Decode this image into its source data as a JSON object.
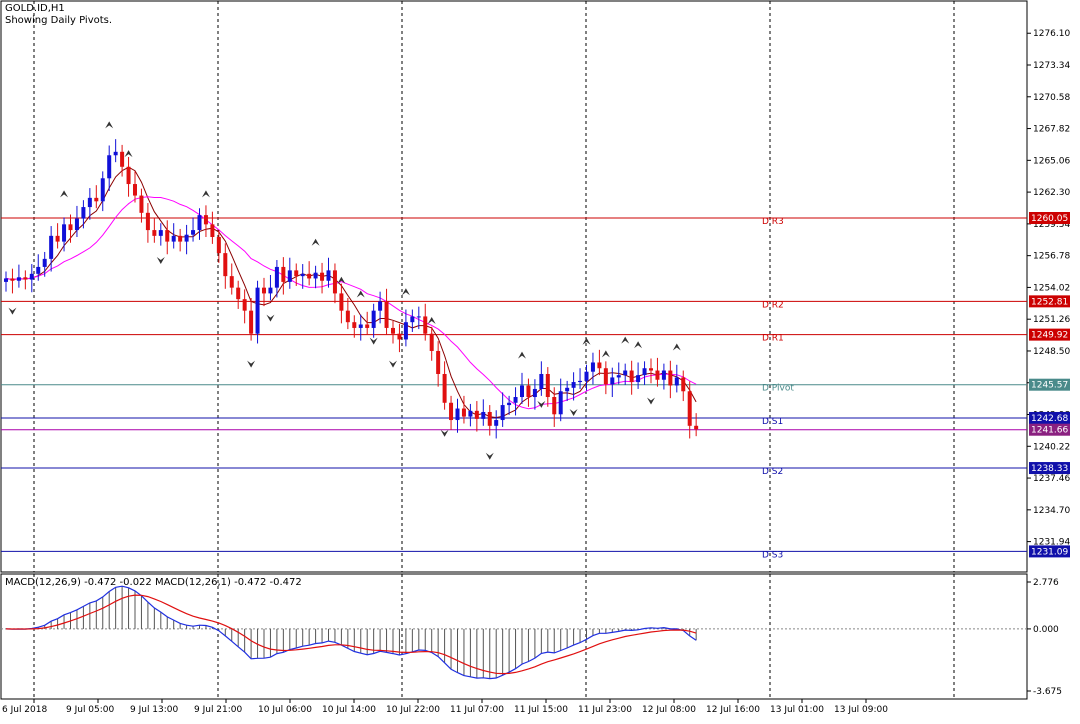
{
  "chart_header": {
    "symbol": "GOLD.ID,H1",
    "indicator": "Showing Daily Pivots."
  },
  "macd_header": "MACD(12,26,9) -0.472 -0.022 MACD(12,26,1) -0.472 -0.472",
  "colors": {
    "background": "#ffffff",
    "bull_candle": "#1010d8",
    "bear_candle": "#e01010",
    "ma_fast": "#8b0000",
    "ma_slow": "#ff00ff",
    "resistance": "#cc0000",
    "pivot": "#4a8a8a",
    "support": "#1010aa",
    "macd_main": "#2030e0",
    "macd_signal": "#e01010",
    "grid": "#000000"
  },
  "chart_data": [
    {
      "type": "candlestick",
      "title": "GOLD.ID,H1",
      "ylim": [
        1229.3,
        1278.9
      ],
      "y_ticks": [
        "1276.10",
        "1273.34",
        "1270.58",
        "1267.82",
        "1265.06",
        "1262.30",
        "1259.54",
        "1256.78",
        "1254.02",
        "1251.26",
        "1248.50",
        "1245.74",
        "1242.98",
        "1240.22",
        "1237.46",
        "1234.70",
        "1231.94"
      ],
      "x_ticks": [
        "6 Jul 2018",
        "9 Jul 05:00",
        "9 Jul 13:00",
        "9 Jul 21:00",
        "10 Jul 06:00",
        "10 Jul 14:00",
        "10 Jul 22:00",
        "11 Jul 07:00",
        "11 Jul 15:00",
        "11 Jul 23:00",
        "12 Jul 08:00",
        "12 Jul 16:00",
        "13 Jul 01:00",
        "13 Jul 09:00"
      ],
      "pivot_levels": [
        {
          "name": "R3",
          "label": "D  R3",
          "value": "1260.05",
          "kind": "resistance"
        },
        {
          "name": "R2",
          "label": "D  R2",
          "value": "1252.81",
          "kind": "resistance"
        },
        {
          "name": "R1",
          "label": "D  R1",
          "value": "1249.92",
          "kind": "resistance"
        },
        {
          "name": "Pivot",
          "label": "D  Pivot",
          "value": "1245.57",
          "kind": "pivot"
        },
        {
          "name": "S1",
          "label": "D  S1",
          "value": "1242.68",
          "kind": "support"
        },
        {
          "name": "S2",
          "label": "D  S2",
          "value": "1238.33",
          "kind": "support"
        },
        {
          "name": "S3",
          "label": "D  S3",
          "value": "1231.09",
          "kind": "support"
        }
      ],
      "current_price": "1241.66",
      "close_prices": [
        1254.8,
        1254.6,
        1254.9,
        1254.7,
        1255.2,
        1255.8,
        1256.5,
        1258.5,
        1258.0,
        1259.5,
        1259.0,
        1260.0,
        1261.0,
        1261.8,
        1261.5,
        1263.5,
        1265.5,
        1265.8,
        1264.5,
        1263.0,
        1262.0,
        1260.5,
        1259.0,
        1258.5,
        1259.0,
        1258.0,
        1258.5,
        1258.0,
        1258.6,
        1259.0,
        1260.3,
        1259.5,
        1258.4,
        1257.0,
        1255.0,
        1254.0,
        1253.0,
        1252.0,
        1250.0,
        1254.0,
        1253.5,
        1254.0,
        1255.8,
        1254.5,
        1255.5,
        1255.0,
        1255.2,
        1254.8,
        1255.3,
        1254.6,
        1255.5,
        1253.5,
        1252.0,
        1251.0,
        1250.5,
        1250.8,
        1250.5,
        1252.0,
        1252.8,
        1250.5,
        1250.0,
        1249.5,
        1251.0,
        1251.5,
        1251.5,
        1250.0,
        1248.5,
        1246.5,
        1244.0,
        1242.5,
        1243.5,
        1242.8,
        1243.3,
        1242.6,
        1243.2,
        1242.0,
        1242.5,
        1243.8,
        1244.0,
        1244.5,
        1245.5,
        1244.5,
        1245.2,
        1246.5,
        1244.5,
        1243.0,
        1245.0,
        1245.3,
        1245.8,
        1245.9,
        1246.7,
        1247.5,
        1247.0,
        1245.6,
        1246.2,
        1246.4,
        1246.8,
        1245.8,
        1246.4,
        1247.0,
        1246.8,
        1246.0,
        1246.8,
        1245.5,
        1246.2,
        1245.0,
        1242.0,
        1241.7
      ],
      "fractals": [
        {
          "i": 1,
          "dir": "down"
        },
        {
          "i": 9,
          "dir": "up"
        },
        {
          "i": 16,
          "dir": "up"
        },
        {
          "i": 19,
          "dir": "up"
        },
        {
          "i": 24,
          "dir": "down"
        },
        {
          "i": 31,
          "dir": "up"
        },
        {
          "i": 38,
          "dir": "down"
        },
        {
          "i": 41,
          "dir": "down"
        },
        {
          "i": 48,
          "dir": "up"
        },
        {
          "i": 52,
          "dir": "up"
        },
        {
          "i": 55,
          "dir": "up"
        },
        {
          "i": 57,
          "dir": "down"
        },
        {
          "i": 60,
          "dir": "down"
        },
        {
          "i": 62,
          "dir": "up"
        },
        {
          "i": 66,
          "dir": "up"
        },
        {
          "i": 68,
          "dir": "down"
        },
        {
          "i": 75,
          "dir": "down"
        },
        {
          "i": 80,
          "dir": "up"
        },
        {
          "i": 83,
          "dir": "down"
        },
        {
          "i": 88,
          "dir": "down"
        },
        {
          "i": 90,
          "dir": "up"
        },
        {
          "i": 93,
          "dir": "up"
        },
        {
          "i": 96,
          "dir": "up"
        },
        {
          "i": 98,
          "dir": "up"
        },
        {
          "i": 100,
          "dir": "down"
        },
        {
          "i": 104,
          "dir": "up"
        }
      ]
    },
    {
      "type": "line",
      "title": "MACD(12,26,9)",
      "y_ticks": [
        "2.776",
        "0.000",
        "-3.675"
      ],
      "ylim": [
        -3.675,
        2.776
      ]
    }
  ]
}
